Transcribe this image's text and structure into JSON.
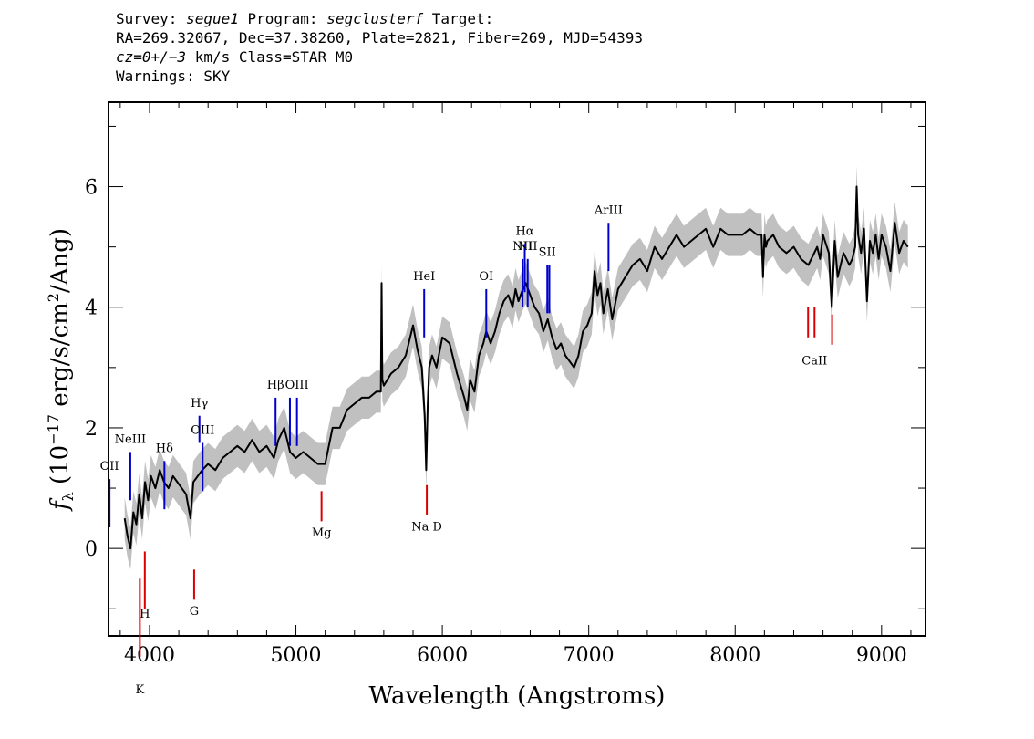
{
  "header": {
    "survey_label": "Survey: ",
    "survey_value": "segue1",
    "program_label": " Program: ",
    "program_value": "segclusterf",
    "target_label": " Target:",
    "line2": "RA=269.32067, Dec=37.38260, Plate=2821, Fiber=269, MJD=54393",
    "cz_value": "cz=0+/−3",
    "cz_rest": " km/s Class=STAR M0",
    "warnings": "Warnings: SKY"
  },
  "chart_data": {
    "type": "line",
    "xlabel": "Wavelength (Angstroms)",
    "ylabel": "f_λ (10^-17 erg/s/cm^2/Ang)",
    "xlim": [
      3720,
      9300
    ],
    "ylim": [
      -1.45,
      7.4
    ],
    "x_ticks": [
      4000,
      5000,
      6000,
      7000,
      8000,
      9000
    ],
    "y_ticks": [
      0,
      2,
      4,
      6
    ],
    "grid": false,
    "colors": {
      "flux": "#000000",
      "error_band": "#c0c0c0",
      "emission_lines": "#0000cc",
      "absorption_lines": "#dd0000"
    },
    "series": [
      {
        "x": [
          3830,
          3850,
          3870,
          3890,
          3910,
          3930,
          3950,
          3970,
          3990,
          4010,
          4040,
          4070,
          4100,
          4130,
          4160,
          4190,
          4220,
          4250,
          4280,
          4300,
          4330,
          4360,
          4400,
          4450,
          4500,
          4550,
          4600,
          4650,
          4700,
          4750,
          4800,
          4850,
          4880,
          4920,
          4960,
          5000,
          5050,
          5100,
          5150,
          5200,
          5250,
          5300,
          5350,
          5400,
          5450,
          5500,
          5550,
          5580,
          5585,
          5590,
          5600,
          5650,
          5700,
          5750,
          5800,
          5830,
          5860,
          5880,
          5890,
          5900,
          5910,
          5930,
          5960,
          6000,
          6050,
          6100,
          6150,
          6170,
          6190,
          6220,
          6250,
          6280,
          6300,
          6330,
          6360,
          6390,
          6420,
          6450,
          6480,
          6500,
          6520,
          6550,
          6570,
          6600,
          6630,
          6660,
          6690,
          6720,
          6750,
          6780,
          6810,
          6840,
          6870,
          6900,
          6930,
          6960,
          6990,
          7020,
          7040,
          7060,
          7080,
          7100,
          7130,
          7160,
          7200,
          7250,
          7300,
          7350,
          7400,
          7450,
          7500,
          7550,
          7600,
          7650,
          7700,
          7750,
          7800,
          7850,
          7900,
          7950,
          8000,
          8050,
          8100,
          8150,
          8180,
          8190,
          8200,
          8210,
          8220,
          8260,
          8300,
          8350,
          8400,
          8450,
          8500,
          8540,
          8560,
          8580,
          8600,
          8640,
          8660,
          8680,
          8700,
          8740,
          8780,
          8800,
          8820,
          8830,
          8840,
          8860,
          8880,
          8900,
          8920,
          8940,
          8960,
          8980,
          9000,
          9030,
          9060,
          9090,
          9120,
          9150,
          9180
        ],
        "y": [
          0.5,
          0.2,
          0.0,
          0.6,
          0.4,
          0.9,
          0.5,
          1.1,
          0.8,
          1.2,
          1.0,
          1.3,
          1.1,
          1.0,
          1.2,
          1.1,
          1.0,
          0.9,
          0.5,
          1.1,
          1.2,
          1.3,
          1.4,
          1.3,
          1.5,
          1.6,
          1.7,
          1.6,
          1.8,
          1.6,
          1.7,
          1.5,
          1.8,
          2.0,
          1.6,
          1.5,
          1.6,
          1.5,
          1.4,
          1.4,
          2.0,
          2.0,
          2.3,
          2.4,
          2.5,
          2.5,
          2.6,
          2.6,
          4.4,
          2.8,
          2.7,
          2.9,
          3.0,
          3.2,
          3.7,
          3.3,
          3.0,
          2.2,
          1.3,
          2.4,
          3.0,
          3.2,
          3.0,
          3.5,
          3.4,
          2.9,
          2.5,
          2.3,
          2.8,
          2.6,
          3.2,
          3.4,
          3.6,
          3.4,
          3.6,
          3.9,
          4.1,
          4.2,
          4.0,
          4.3,
          4.1,
          4.3,
          4.4,
          4.2,
          4.0,
          3.9,
          3.6,
          3.8,
          3.5,
          3.3,
          3.4,
          3.2,
          3.1,
          3.0,
          3.2,
          3.6,
          3.7,
          3.9,
          4.6,
          4.2,
          4.4,
          3.9,
          4.3,
          3.8,
          4.3,
          4.5,
          4.7,
          4.8,
          4.6,
          5.0,
          4.8,
          5.0,
          5.2,
          5.0,
          5.1,
          5.2,
          5.3,
          5.0,
          5.3,
          5.2,
          5.2,
          5.2,
          5.3,
          5.2,
          5.2,
          4.5,
          5.2,
          5.0,
          5.1,
          5.2,
          5.0,
          4.9,
          5.0,
          4.8,
          4.7,
          4.9,
          5.0,
          4.8,
          5.2,
          4.9,
          4.0,
          5.1,
          4.5,
          4.9,
          4.7,
          4.8,
          5.0,
          6.0,
          5.2,
          4.9,
          5.3,
          4.1,
          5.1,
          4.9,
          5.2,
          4.8,
          5.2,
          5.0,
          4.6,
          5.4,
          4.9,
          5.1,
          5.0
        ]
      }
    ],
    "line_labels": [
      {
        "text": "OII",
        "x": 3727,
        "y_text": 1.3
      },
      {
        "text": "NeIII",
        "x": 3869,
        "y_text": 1.75
      },
      {
        "text": "Hδ",
        "x": 4102,
        "y_text": 1.6
      },
      {
        "text": "Hγ",
        "x": 4341,
        "y_text": 2.35
      },
      {
        "text": "OIII",
        "x": 4363,
        "y_text": 1.9
      },
      {
        "text": "Hβ",
        "x": 4861,
        "y_text": 2.65
      },
      {
        "text": "OIII",
        "x": 5007,
        "y_text": 2.65
      },
      {
        "text": "HeI",
        "x": 5876,
        "y_text": 4.45
      },
      {
        "text": "OI",
        "x": 6300,
        "y_text": 4.45
      },
      {
        "text": "NII",
        "x": 6548,
        "y_text": 4.95
      },
      {
        "text": "Hα",
        "x": 6563,
        "y_text": 5.2
      },
      {
        "text": "NII",
        "x": 6583,
        "y_text": 4.95
      },
      {
        "text": "SII",
        "x": 6717,
        "y_text": 4.85
      },
      {
        "text": "ArIII",
        "x": 7135,
        "y_text": 5.55
      },
      {
        "text": "Mg",
        "x": 5175,
        "y_text": 0.2
      },
      {
        "text": "Na D",
        "x": 5894,
        "y_text": 0.3
      },
      {
        "text": "G",
        "x": 4305,
        "y_text": -1.1
      },
      {
        "text": "H",
        "x": 3968,
        "y_text": -1.15
      },
      {
        "text": "K",
        "x": 3934,
        "y_text": -2.4
      },
      {
        "text": "CaII",
        "x": 8542,
        "y_text": 3.05
      }
    ]
  }
}
